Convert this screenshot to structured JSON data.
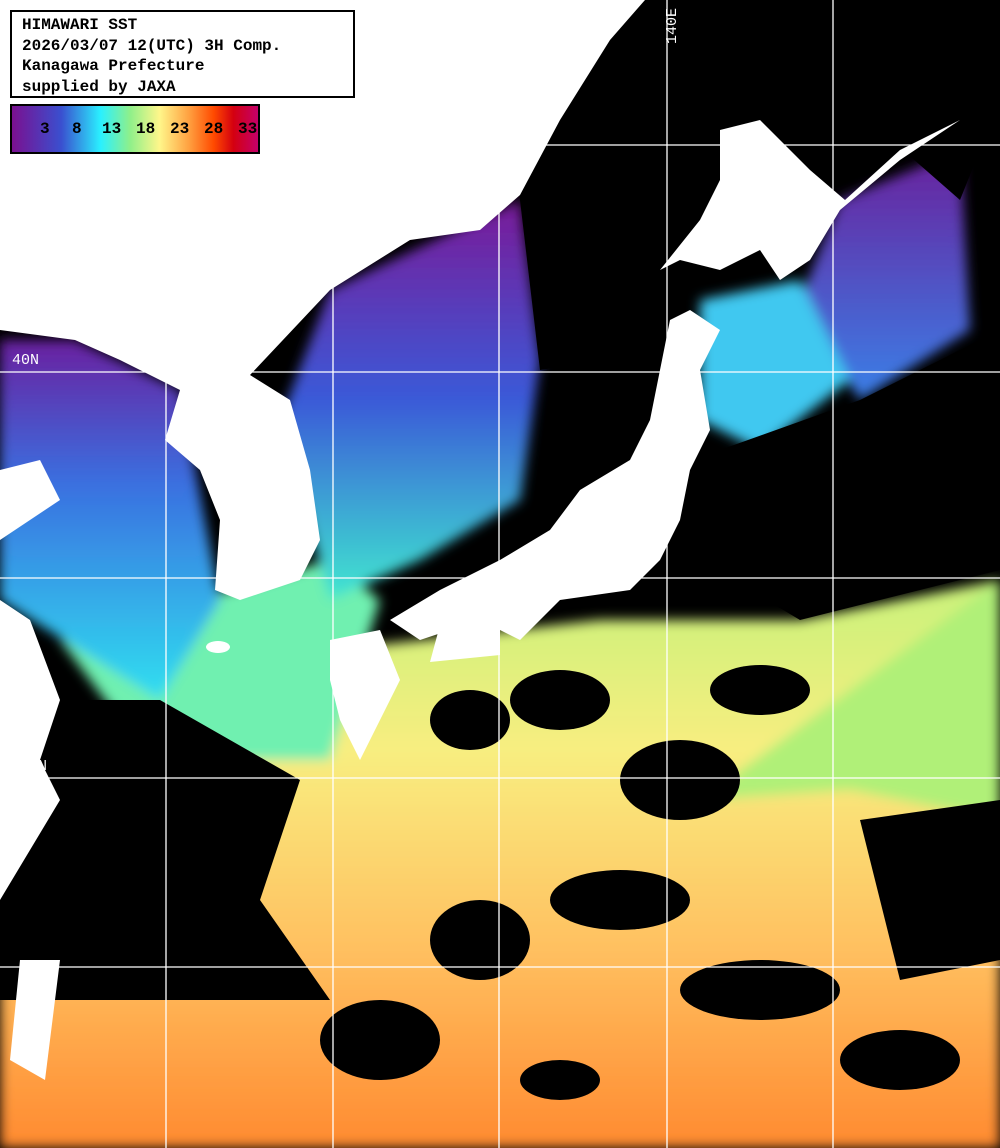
{
  "header": {
    "lines": [
      "HIMAWARI SST",
      "2026/03/07 12(UTC) 3H Comp.",
      "Kanagawa Prefecture",
      "supplied by JAXA"
    ]
  },
  "legend": {
    "ticks": [
      "3",
      "8",
      "13",
      "18",
      "23",
      "28",
      "33"
    ],
    "colors": [
      "#7a1090",
      "#3a4fcf",
      "#2af0ff",
      "#8ff08a",
      "#fff68a",
      "#ffa040",
      "#ff4a00",
      "#d40010",
      "#c4006a"
    ]
  },
  "grid": {
    "lon_label": "140E",
    "lat_labels": [
      "40N",
      "30N"
    ]
  },
  "colors": {
    "land": "#ffffff",
    "cloud_no_data": "#000000",
    "grid": "#ffffff"
  }
}
